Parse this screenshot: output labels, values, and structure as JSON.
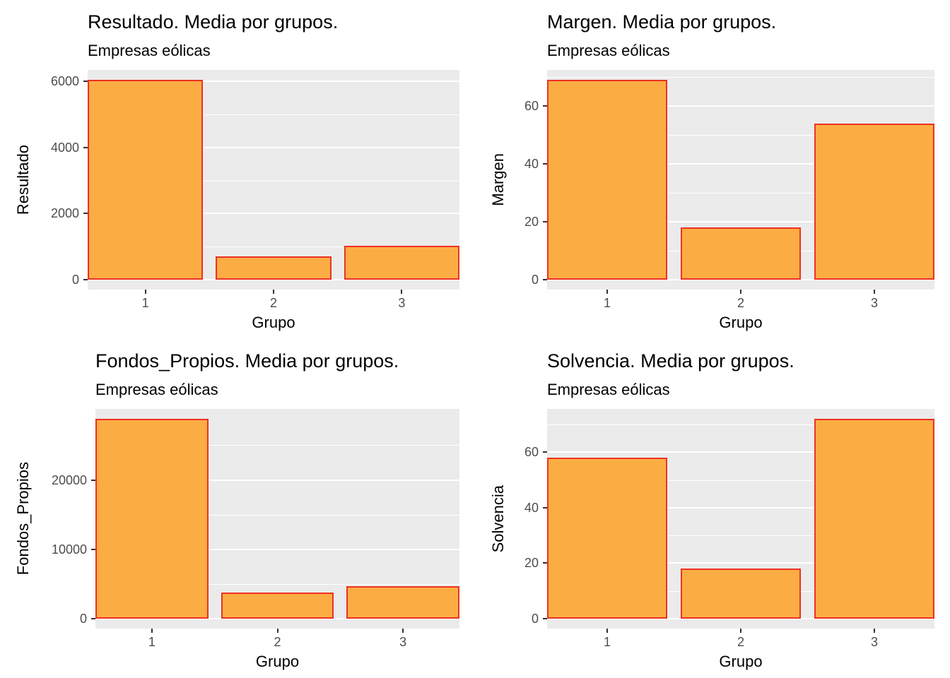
{
  "style": {
    "bar_fill": "#FBAD43",
    "bar_stroke": "#EE3124",
    "panel_bg": "#EBEBEB",
    "grid_color": "#FFFFFF",
    "tick_text_color": "#4D4D4D",
    "title_color": "#000000"
  },
  "chart_data": [
    {
      "type": "bar",
      "title": "Resultado. Media por grupos.",
      "subtitle": "Empresas eólicas",
      "xlabel": "Grupo",
      "ylabel": "Resultado",
      "categories": [
        "1",
        "2",
        "3"
      ],
      "values": [
        6050,
        700,
        1020
      ],
      "yticks": [
        0,
        2000,
        4000,
        6000
      ],
      "ylim": [
        -302,
        6353
      ],
      "grid": true,
      "legend": "none",
      "bar_width": 0.9
    },
    {
      "type": "bar",
      "title": "Margen. Media por grupos.",
      "subtitle": "Empresas eólicas",
      "xlabel": "Grupo",
      "ylabel": "Margen",
      "categories": [
        "1",
        "2",
        "3"
      ],
      "values": [
        69,
        18,
        54
      ],
      "yticks": [
        0,
        20,
        40,
        60
      ],
      "ylim": [
        -3.45,
        72.45
      ],
      "grid": true,
      "legend": "none",
      "bar_width": 0.9
    },
    {
      "type": "bar",
      "title": "Fondos_Propios. Media por grupos.",
      "subtitle": "Empresas eólicas",
      "xlabel": "Grupo",
      "ylabel": "Fondos_Propios",
      "categories": [
        "1",
        "2",
        "3"
      ],
      "values": [
        28800,
        3800,
        4700
      ],
      "yticks": [
        0,
        10000,
        20000
      ],
      "ylim": [
        -1440,
        30240
      ],
      "grid": true,
      "legend": "none",
      "bar_width": 0.9
    },
    {
      "type": "bar",
      "title": "Solvencia. Media por grupos.",
      "subtitle": "Empresas eólicas",
      "xlabel": "Grupo",
      "ylabel": "Solvencia",
      "categories": [
        "1",
        "2",
        "3"
      ],
      "values": [
        58,
        18,
        72
      ],
      "yticks": [
        0,
        20,
        40,
        60
      ],
      "ylim": [
        -3.6,
        75.6
      ],
      "grid": true,
      "legend": "none",
      "bar_width": 0.9
    }
  ]
}
